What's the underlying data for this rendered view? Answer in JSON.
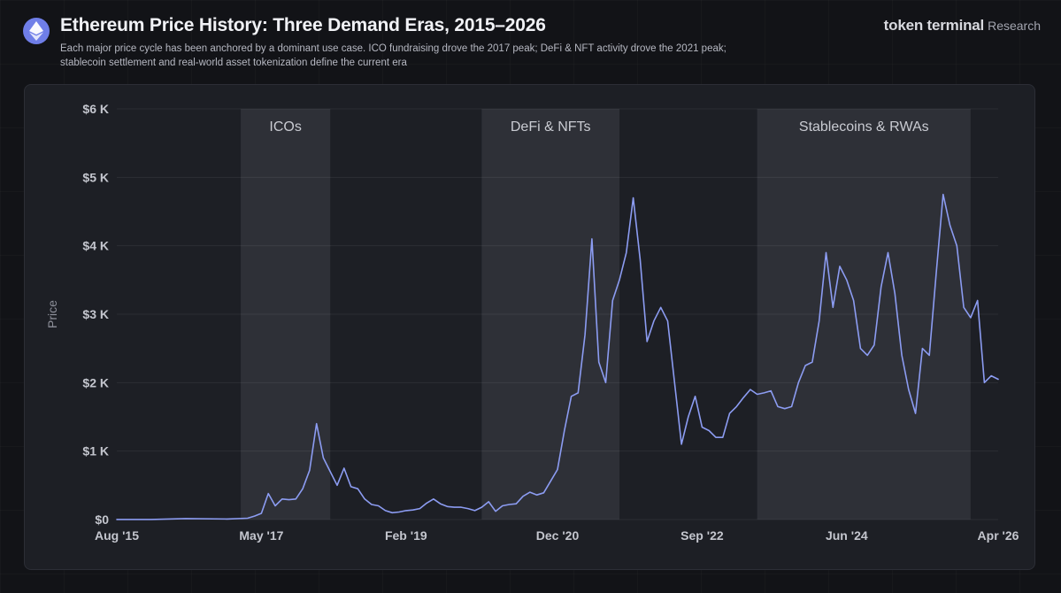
{
  "header": {
    "title": "Ethereum Price History: Three Demand Eras, 2015–2026",
    "subtitle": "Each major price cycle has been anchored by a dominant use case. ICO fundraising drove the 2017 peak; DeFi & NFT activity drove the 2021 peak; stablecoin settlement and real-world asset tokenization define the current era",
    "logo_icon": "ethereum-icon"
  },
  "brand": {
    "name": "token terminal",
    "suffix": "Research"
  },
  "colors": {
    "line": "#8c9cf2",
    "era_band": "#2e3037",
    "plot_bg": "#1d1f25",
    "accent_logo": "#6f7ee8"
  },
  "chart_data": {
    "type": "line",
    "title": "Ethereum Price History: Three Demand Eras, 2015–2026",
    "xlabel": "",
    "ylabel": "Price",
    "ylim": [
      0,
      6000
    ],
    "xlim": [
      "2015-08",
      "2026-04"
    ],
    "grid": "horizontal",
    "y_ticks": [
      {
        "value": 0,
        "label": "$0"
      },
      {
        "value": 1000,
        "label": "$1 K"
      },
      {
        "value": 2000,
        "label": "$2 K"
      },
      {
        "value": 3000,
        "label": "$3 K"
      },
      {
        "value": 4000,
        "label": "$4 K"
      },
      {
        "value": 5000,
        "label": "$5 K"
      },
      {
        "value": 6000,
        "label": "$6 K"
      }
    ],
    "x_ticks": [
      {
        "date": "2015-08",
        "label": "Aug '15"
      },
      {
        "date": "2017-05",
        "label": "May '17"
      },
      {
        "date": "2019-02",
        "label": "Feb '19"
      },
      {
        "date": "2020-12",
        "label": "Dec '20"
      },
      {
        "date": "2022-09",
        "label": "Sep '22"
      },
      {
        "date": "2024-06",
        "label": "Jun '24"
      },
      {
        "date": "2026-04",
        "label": "Apr '26"
      }
    ],
    "eras": [
      {
        "label": "ICOs",
        "start": "2017-02",
        "end": "2018-03"
      },
      {
        "label": "DeFi & NFTs",
        "start": "2020-01",
        "end": "2021-09"
      },
      {
        "label": "Stablecoins & RWAs",
        "start": "2023-05",
        "end": "2025-12"
      }
    ],
    "series": [
      {
        "values": [
          [
            "2015-08",
            1
          ],
          [
            "2016-01",
            1
          ],
          [
            "2016-06",
            14
          ],
          [
            "2016-12",
            8
          ],
          [
            "2017-03",
            20
          ],
          [
            "2017-04",
            50
          ],
          [
            "2017-05",
            90
          ],
          [
            "2017-06",
            380
          ],
          [
            "2017-07",
            200
          ],
          [
            "2017-08",
            300
          ],
          [
            "2017-09",
            290
          ],
          [
            "2017-10",
            300
          ],
          [
            "2017-11",
            450
          ],
          [
            "2017-12",
            720
          ],
          [
            "2018-01",
            1400
          ],
          [
            "2018-02",
            900
          ],
          [
            "2018-03",
            700
          ],
          [
            "2018-04",
            500
          ],
          [
            "2018-05",
            750
          ],
          [
            "2018-06",
            480
          ],
          [
            "2018-07",
            450
          ],
          [
            "2018-08",
            300
          ],
          [
            "2018-09",
            220
          ],
          [
            "2018-10",
            200
          ],
          [
            "2018-11",
            130
          ],
          [
            "2018-12",
            100
          ],
          [
            "2019-01",
            110
          ],
          [
            "2019-02",
            130
          ],
          [
            "2019-03",
            140
          ],
          [
            "2019-04",
            160
          ],
          [
            "2019-05",
            240
          ],
          [
            "2019-06",
            300
          ],
          [
            "2019-07",
            230
          ],
          [
            "2019-08",
            190
          ],
          [
            "2019-09",
            180
          ],
          [
            "2019-10",
            180
          ],
          [
            "2019-11",
            160
          ],
          [
            "2019-12",
            130
          ],
          [
            "2020-01",
            180
          ],
          [
            "2020-02",
            260
          ],
          [
            "2020-03",
            120
          ],
          [
            "2020-04",
            200
          ],
          [
            "2020-05",
            220
          ],
          [
            "2020-06",
            230
          ],
          [
            "2020-07",
            340
          ],
          [
            "2020-08",
            400
          ],
          [
            "2020-09",
            360
          ],
          [
            "2020-10",
            390
          ],
          [
            "2020-11",
            560
          ],
          [
            "2020-12",
            730
          ],
          [
            "2021-01",
            1300
          ],
          [
            "2021-02",
            1800
          ],
          [
            "2021-03",
            1850
          ],
          [
            "2021-04",
            2700
          ],
          [
            "2021-05",
            4100
          ],
          [
            "2021-06",
            2300
          ],
          [
            "2021-07",
            2000
          ],
          [
            "2021-08",
            3200
          ],
          [
            "2021-09",
            3500
          ],
          [
            "2021-10",
            3900
          ],
          [
            "2021-11",
            4700
          ],
          [
            "2021-12",
            3800
          ],
          [
            "2022-01",
            2600
          ],
          [
            "2022-02",
            2900
          ],
          [
            "2022-03",
            3100
          ],
          [
            "2022-04",
            2900
          ],
          [
            "2022-05",
            2000
          ],
          [
            "2022-06",
            1100
          ],
          [
            "2022-07",
            1500
          ],
          [
            "2022-08",
            1800
          ],
          [
            "2022-09",
            1350
          ],
          [
            "2022-10",
            1300
          ],
          [
            "2022-11",
            1200
          ],
          [
            "2022-12",
            1200
          ],
          [
            "2023-01",
            1550
          ],
          [
            "2023-02",
            1650
          ],
          [
            "2023-03",
            1780
          ],
          [
            "2023-04",
            1900
          ],
          [
            "2023-05",
            1830
          ],
          [
            "2023-06",
            1850
          ],
          [
            "2023-07",
            1880
          ],
          [
            "2023-08",
            1650
          ],
          [
            "2023-09",
            1620
          ],
          [
            "2023-10",
            1650
          ],
          [
            "2023-11",
            2000
          ],
          [
            "2023-12",
            2250
          ],
          [
            "2024-01",
            2300
          ],
          [
            "2024-02",
            2900
          ],
          [
            "2024-03",
            3900
          ],
          [
            "2024-04",
            3100
          ],
          [
            "2024-05",
            3700
          ],
          [
            "2024-06",
            3500
          ],
          [
            "2024-07",
            3200
          ],
          [
            "2024-08",
            2500
          ],
          [
            "2024-09",
            2400
          ],
          [
            "2024-10",
            2550
          ],
          [
            "2024-11",
            3400
          ],
          [
            "2024-12",
            3900
          ],
          [
            "2025-01",
            3300
          ],
          [
            "2025-02",
            2400
          ],
          [
            "2025-03",
            1900
          ],
          [
            "2025-04",
            1550
          ],
          [
            "2025-05",
            2500
          ],
          [
            "2025-06",
            2400
          ],
          [
            "2025-07",
            3600
          ],
          [
            "2025-08",
            4750
          ],
          [
            "2025-09",
            4300
          ],
          [
            "2025-10",
            4000
          ],
          [
            "2025-11",
            3100
          ],
          [
            "2025-12",
            2950
          ],
          [
            "2026-01",
            3200
          ],
          [
            "2026-02",
            2000
          ],
          [
            "2026-03",
            2100
          ],
          [
            "2026-04",
            2050
          ]
        ]
      }
    ]
  }
}
